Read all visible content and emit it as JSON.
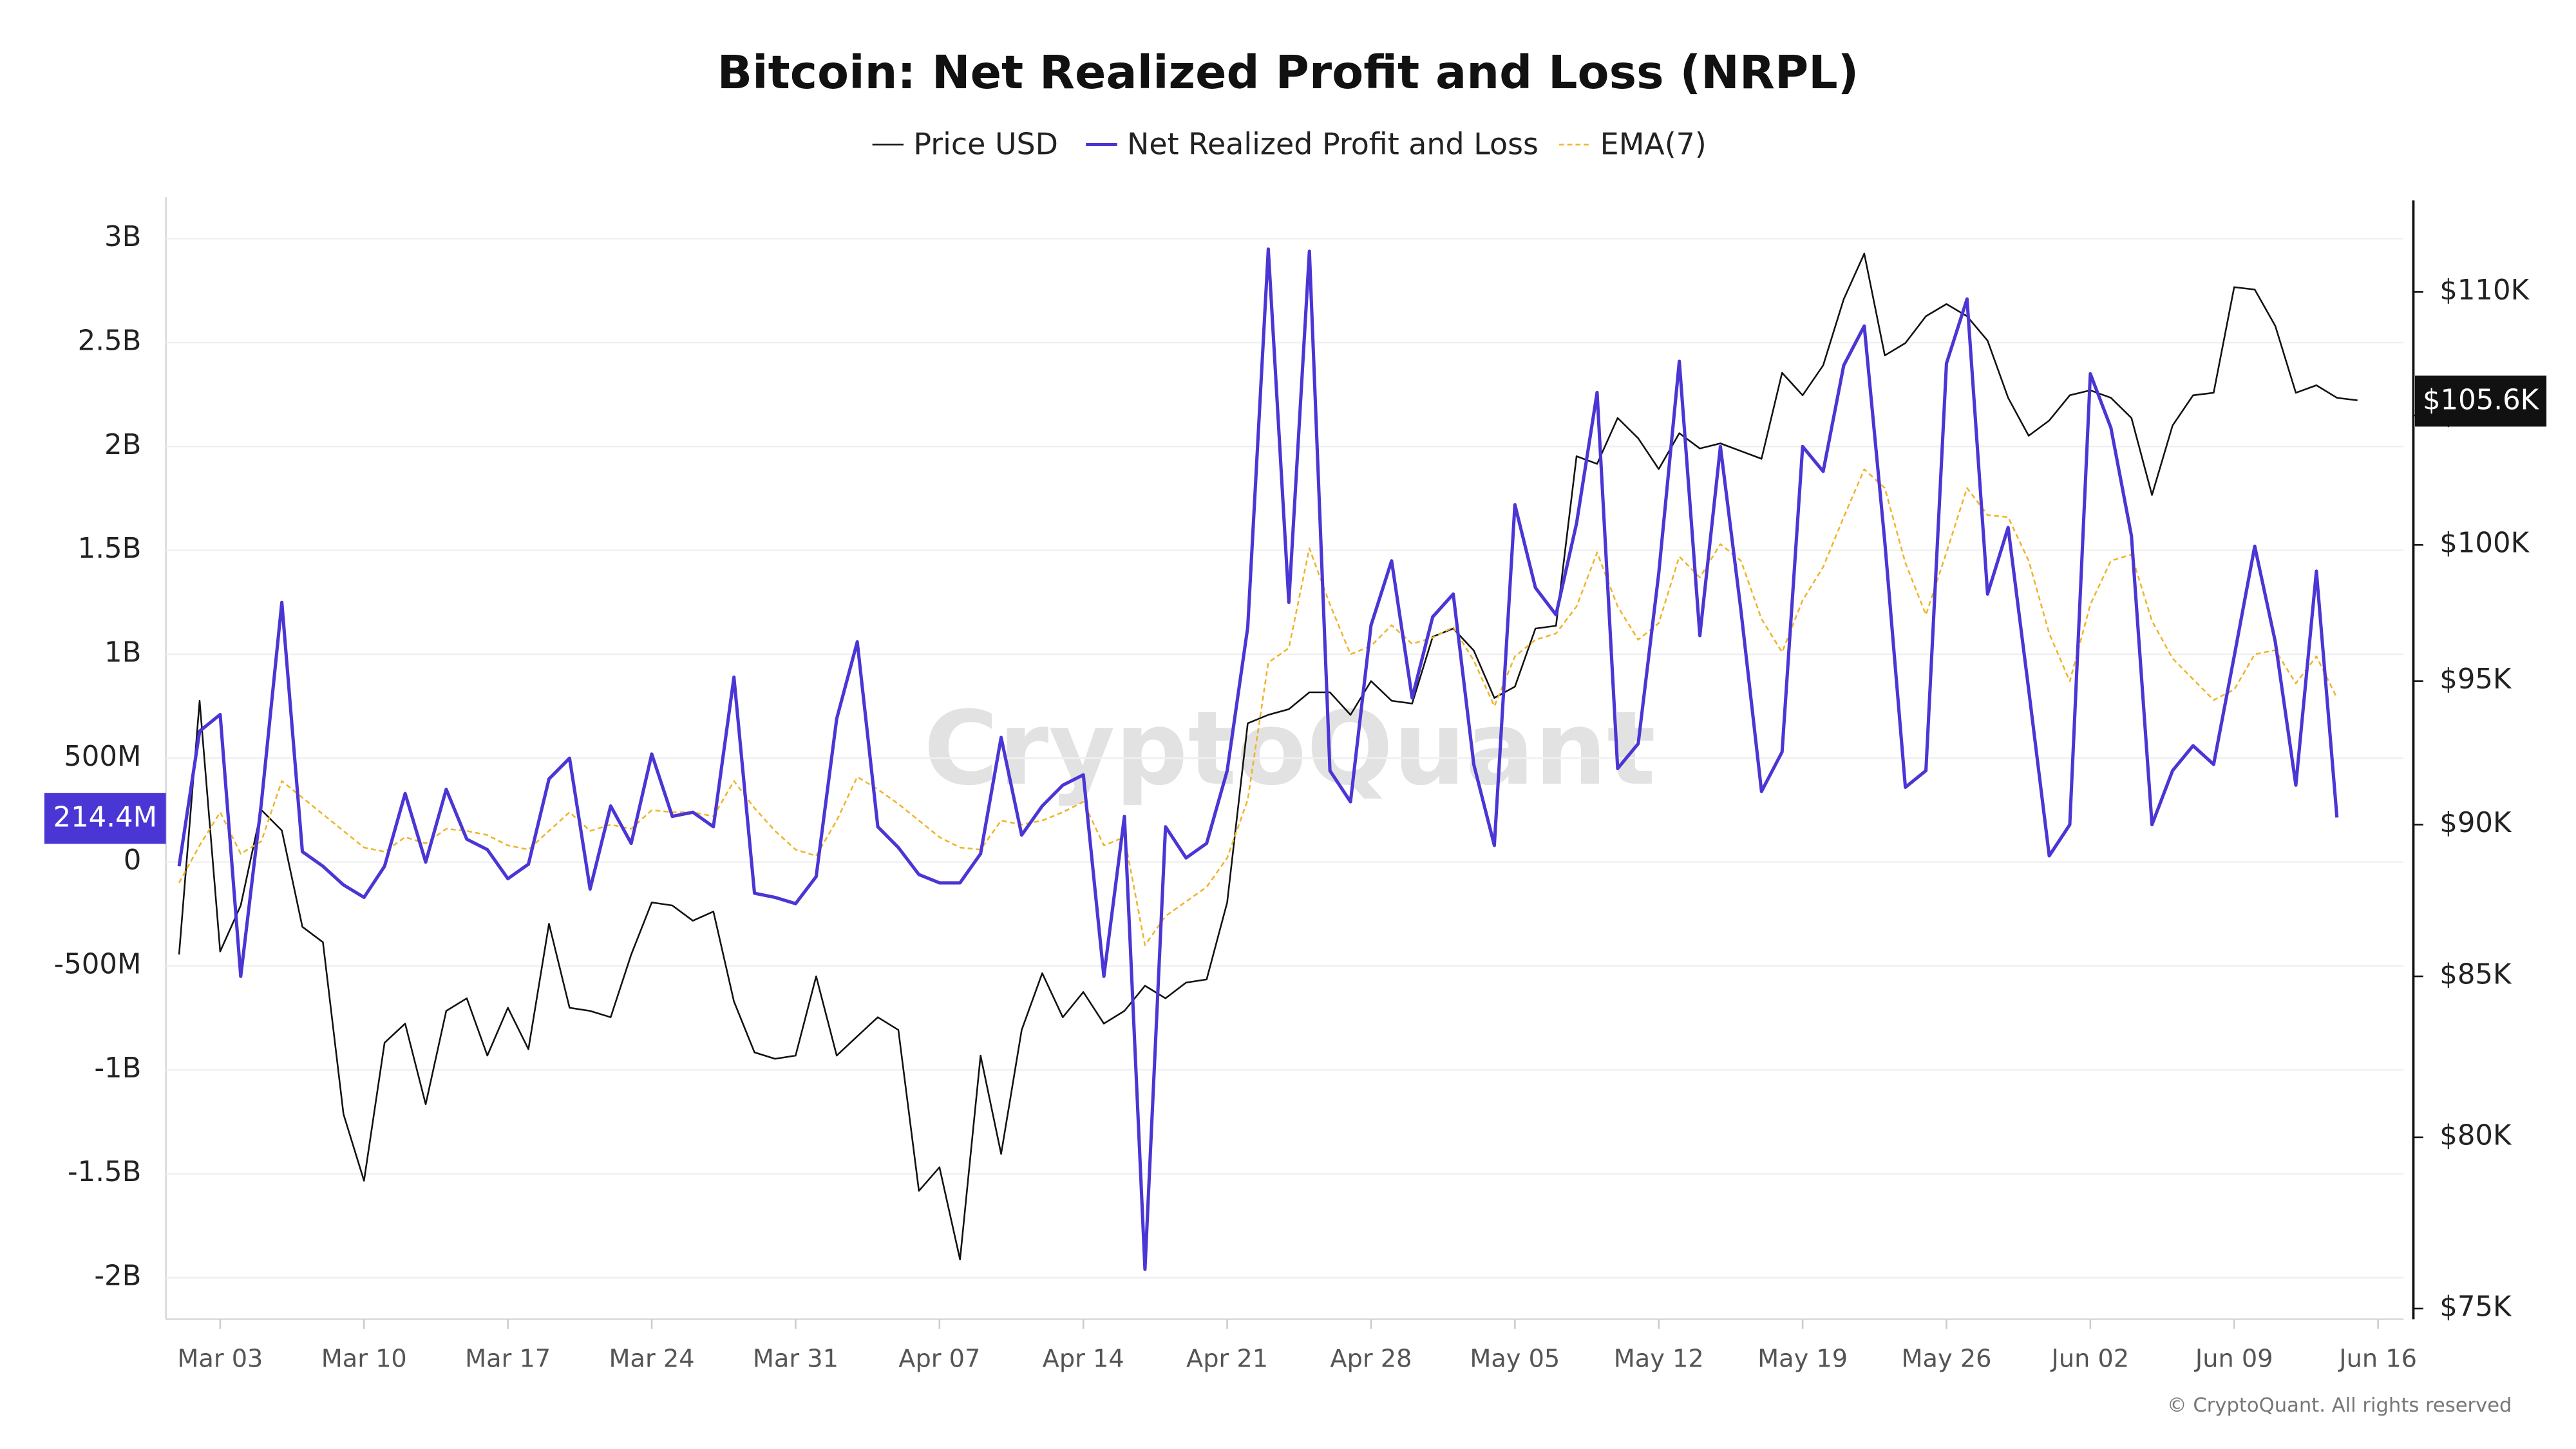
{
  "chart_data": {
    "type": "line",
    "title": "Bitcoin: Net Realized Profit and Loss (NRPL)",
    "watermark": "CryptoQuant",
    "footer": "© CryptoQuant. All rights reserved",
    "x": [
      "Mar 01",
      "Mar 02",
      "Mar 03",
      "Mar 04",
      "Mar 05",
      "Mar 06",
      "Mar 07",
      "Mar 08",
      "Mar 09",
      "Mar 10",
      "Mar 11",
      "Mar 12",
      "Mar 13",
      "Mar 14",
      "Mar 15",
      "Mar 16",
      "Mar 17",
      "Mar 18",
      "Mar 19",
      "Mar 20",
      "Mar 21",
      "Mar 22",
      "Mar 23",
      "Mar 24",
      "Mar 25",
      "Mar 26",
      "Mar 27",
      "Mar 28",
      "Mar 29",
      "Mar 30",
      "Mar 31",
      "Apr 01",
      "Apr 02",
      "Apr 03",
      "Apr 04",
      "Apr 05",
      "Apr 06",
      "Apr 07",
      "Apr 08",
      "Apr 09",
      "Apr 10",
      "Apr 11",
      "Apr 12",
      "Apr 13",
      "Apr 14",
      "Apr 15",
      "Apr 16",
      "Apr 17",
      "Apr 18",
      "Apr 19",
      "Apr 20",
      "Apr 21",
      "Apr 22",
      "Apr 23",
      "Apr 24",
      "Apr 25",
      "Apr 26",
      "Apr 27",
      "Apr 28",
      "Apr 29",
      "Apr 30",
      "May 01",
      "May 02",
      "May 03",
      "May 04",
      "May 05",
      "May 06",
      "May 07",
      "May 08",
      "May 09",
      "May 10",
      "May 11",
      "May 12",
      "May 13",
      "May 14",
      "May 15",
      "May 16",
      "May 17",
      "May 18",
      "May 19",
      "May 20",
      "May 21",
      "May 22",
      "May 23",
      "May 24",
      "May 25",
      "May 26",
      "May 27",
      "May 28",
      "May 29",
      "May 30",
      "May 31",
      "Jun 01",
      "Jun 02",
      "Jun 03",
      "Jun 04",
      "Jun 05",
      "Jun 06",
      "Jun 07",
      "Jun 08",
      "Jun 09",
      "Jun 10",
      "Jun 11",
      "Jun 12",
      "Jun 13",
      "Jun 14",
      "Jun 15"
    ],
    "xticks": [
      "Mar 03",
      "Mar 10",
      "Mar 17",
      "Mar 24",
      "Mar 31",
      "Apr 07",
      "Apr 14",
      "Apr 21",
      "Apr 28",
      "May 05",
      "May 12",
      "May 19",
      "May 26",
      "Jun 02",
      "Jun 09",
      "Jun 16"
    ],
    "ylim": [
      -2200000000,
      3200000000
    ],
    "yticks": [
      {
        "value": -2000000000,
        "label": "-2B"
      },
      {
        "value": -1500000000,
        "label": "-1.5B"
      },
      {
        "value": -1000000000,
        "label": "-1B"
      },
      {
        "value": -500000000,
        "label": "-500M"
      },
      0,
      {
        "value": 500000000,
        "label": "500M"
      },
      {
        "value": 1000000000,
        "label": "1B"
      },
      {
        "value": 1500000000,
        "label": "1.5B"
      },
      {
        "value": 2000000000,
        "label": "2B"
      },
      {
        "value": 2500000000,
        "label": "2.5B"
      },
      {
        "value": 3000000000,
        "label": "3B"
      }
    ],
    "y2lim": [
      74700,
      114000
    ],
    "y2log": true,
    "y2ticks": [
      {
        "value": 75000,
        "label": "$75K"
      },
      {
        "value": 80000,
        "label": "$80K"
      },
      {
        "value": 85000,
        "label": "$85K"
      },
      {
        "value": 90000,
        "label": "$90K"
      },
      {
        "value": 95000,
        "label": "$95K"
      },
      {
        "value": 100000,
        "label": "$100K"
      },
      {
        "value": 105000,
        "label": "$105K"
      },
      {
        "value": 110000,
        "label": "$110K"
      }
    ],
    "grid": true,
    "legend": "top",
    "series": [
      {
        "name": "Price USD",
        "color": "#111111",
        "axis": "y2",
        "width": 1,
        "dashed": false,
        "values": [
          85700,
          94300,
          85800,
          87300,
          90500,
          89800,
          86600,
          86100,
          80700,
          78700,
          82900,
          83500,
          81000,
          83900,
          84300,
          82500,
          84000,
          82700,
          86700,
          84000,
          83900,
          83700,
          85700,
          87400,
          87300,
          86800,
          87100,
          84200,
          82600,
          82400,
          82500,
          85000,
          82500,
          83100,
          83700,
          83300,
          78400,
          79100,
          76400,
          82500,
          79500,
          83300,
          85100,
          83700,
          84500,
          83500,
          83900,
          84700,
          84300,
          84800,
          84900,
          87400,
          93500,
          93800,
          94000,
          94600,
          94600,
          93800,
          95000,
          94300,
          94200,
          96600,
          96900,
          96100,
          94400,
          94800,
          96900,
          97000,
          103400,
          103100,
          104900,
          104100,
          102900,
          104300,
          103700,
          103900,
          103600,
          103300,
          106700,
          105800,
          107000,
          109700,
          111600,
          107400,
          107900,
          109000,
          109500,
          109000,
          108000,
          105700,
          104200,
          104800,
          105800,
          106000,
          105700,
          104900,
          101900,
          104600,
          105800,
          105900,
          110200,
          110100,
          108600,
          105900,
          106200,
          105700,
          105600
        ],
        "value_labels": [
          null,
          null,
          null,
          null,
          null,
          null,
          null,
          null,
          null,
          null,
          null,
          null,
          null,
          null,
          null,
          null,
          null,
          null,
          null,
          null,
          null,
          null,
          null,
          null,
          null,
          null,
          null,
          null,
          null,
          null,
          null,
          null,
          null,
          null,
          null,
          null,
          null,
          null,
          null,
          null,
          null,
          null,
          null,
          null,
          null,
          null,
          null,
          null,
          null,
          null,
          null,
          null,
          null,
          null,
          null,
          null,
          null,
          null,
          null,
          null,
          null,
          null,
          null,
          null,
          null,
          null,
          null,
          null,
          null,
          null,
          null,
          null,
          null,
          null,
          null,
          null,
          null,
          null,
          null,
          null,
          null,
          null,
          null,
          null,
          null,
          null,
          null,
          null,
          null,
          null,
          null,
          null,
          null,
          null,
          null,
          null,
          null,
          null,
          null,
          null,
          null,
          null,
          null,
          null,
          null,
          null,
          "$105.6K"
        ]
      },
      {
        "name": "Net Realized Profit and Loss",
        "color": "#4a36d4",
        "axis": "y",
        "width": 2,
        "dashed": false,
        "values": [
          -20000000.0,
          630000000.0,
          710000000.0,
          -550000000.0,
          280000000.0,
          1250000000.0,
          50000000.0,
          -20000000.0,
          -110000000.0,
          -170000000.0,
          -20000000.0,
          330000000.0,
          0,
          350000000.0,
          110000000.0,
          60000000.0,
          -80000000.0,
          -10000000.0,
          400000000.0,
          500000000.0,
          -130000000.0,
          270000000.0,
          90000000.0,
          520000000.0,
          220000000.0,
          240000000.0,
          170000000.0,
          890000000.0,
          -150000000.0,
          -170000000.0,
          -200000000.0,
          -70000000.0,
          690000000.0,
          1060000000.0,
          170000000.0,
          70000000.0,
          -60000000.0,
          -100000000.0,
          -100000000.0,
          40000000.0,
          600000000.0,
          130000000.0,
          270000000.0,
          370000000.0,
          420000000.0,
          -550000000.0,
          220000000.0,
          -1960000000.0,
          170000000.0,
          20000000.0,
          90000000.0,
          440000000.0,
          1130000000.0,
          2950000000.0,
          1250000000.0,
          2940000000.0,
          440000000.0,
          290000000.0,
          1140000000.0,
          1450000000.0,
          790000000.0,
          1180000000.0,
          1290000000.0,
          470000000.0,
          80000000.0,
          1720000000.0,
          1320000000.0,
          1190000000.0,
          1630000000.0,
          2260000000.0,
          450000000.0,
          570000000.0,
          1390000000.0,
          2410000000.0,
          1090000000.0,
          2000000000.0,
          1210000000.0,
          340000000.0,
          530000000.0,
          2000000000.0,
          1880000000.0,
          2390000000.0,
          2580000000.0,
          1540000000.0,
          360000000.0,
          440000000.0,
          2400000000.0,
          2710000000.0,
          1290000000.0,
          1610000000.0,
          830000000.0,
          30000000.0,
          180000000.0,
          2350000000.0,
          2090000000.0,
          1570000000.0,
          180000000.0,
          440000000.0,
          560000000.0,
          470000000.0,
          990000000.0,
          1520000000.0,
          1060000000.0,
          370000000.0,
          1400000000.0,
          214400000,
          null
        ],
        "value_labels": [
          null,
          null,
          null,
          null,
          null,
          null,
          null,
          null,
          null,
          null,
          null,
          null,
          null,
          null,
          null,
          null,
          null,
          null,
          null,
          null,
          null,
          null,
          null,
          null,
          null,
          null,
          null,
          null,
          null,
          null,
          null,
          null,
          null,
          null,
          null,
          null,
          null,
          null,
          null,
          null,
          null,
          null,
          null,
          null,
          null,
          null,
          null,
          null,
          null,
          null,
          null,
          null,
          null,
          null,
          null,
          null,
          null,
          null,
          null,
          null,
          null,
          null,
          null,
          null,
          null,
          null,
          null,
          null,
          null,
          null,
          null,
          null,
          null,
          null,
          null,
          null,
          null,
          null,
          null,
          null,
          null,
          null,
          null,
          null,
          null,
          null,
          null,
          null,
          null,
          null,
          null,
          null,
          null,
          null,
          null,
          null,
          null,
          null,
          null,
          null,
          null,
          null,
          null,
          null,
          null,
          "214.4M",
          null
        ]
      },
      {
        "name": "EMA(7)",
        "color": "#f0b429",
        "axis": "y",
        "width": 1,
        "dashed": true,
        "values": [
          -100000000.0,
          80000000.0,
          240000000.0,
          40000000.0,
          100000000.0,
          390000000.0,
          310000000.0,
          230000000.0,
          150000000.0,
          70000000.0,
          50000000.0,
          120000000.0,
          90000000.0,
          160000000.0,
          150000000.0,
          130000000.0,
          80000000.0,
          60000000.0,
          150000000.0,
          240000000.0,
          150000000.0,
          180000000.0,
          160000000.0,
          250000000.0,
          240000000.0,
          240000000.0,
          220000000.0,
          390000000.0,
          260000000.0,
          150000000.0,
          60000000.0,
          30000000.0,
          200000000.0,
          410000000.0,
          350000000.0,
          280000000.0,
          200000000.0,
          120000000.0,
          70000000.0,
          60000000.0,
          200000000.0,
          180000000.0,
          200000000.0,
          240000000.0,
          290000000.0,
          80000000.0,
          120000000.0,
          -400000000.0,
          -260000000.0,
          -190000000.0,
          -120000000.0,
          20000000.0,
          300000000.0,
          960000000.0,
          1030000000.0,
          1510000000.0,
          1240000000.0,
          1000000000.0,
          1040000000.0,
          1140000000.0,
          1050000000.0,
          1080000000.0,
          1130000000.0,
          970000000.0,
          750000000.0,
          990000000.0,
          1070000000.0,
          1100000000.0,
          1230000000.0,
          1490000000.0,
          1230000000.0,
          1070000000.0,
          1150000000.0,
          1470000000.0,
          1370000000.0,
          1530000000.0,
          1450000000.0,
          1170000000.0,
          1010000000.0,
          1260000000.0,
          1420000000.0,
          1660000000.0,
          1890000000.0,
          1800000000.0,
          1440000000.0,
          1190000000.0,
          1490000000.0,
          1800000000.0,
          1670000000.0,
          1660000000.0,
          1450000000.0,
          1100000000.0,
          870000000.0,
          1240000000.0,
          1450000000.0,
          1480000000.0,
          1160000000.0,
          980000000.0,
          880000000.0,
          780000000.0,
          830000000.0,
          1000000000.0,
          1020000000.0,
          860000000.0,
          990000000.0,
          790000000.0,
          null
        ]
      }
    ]
  }
}
